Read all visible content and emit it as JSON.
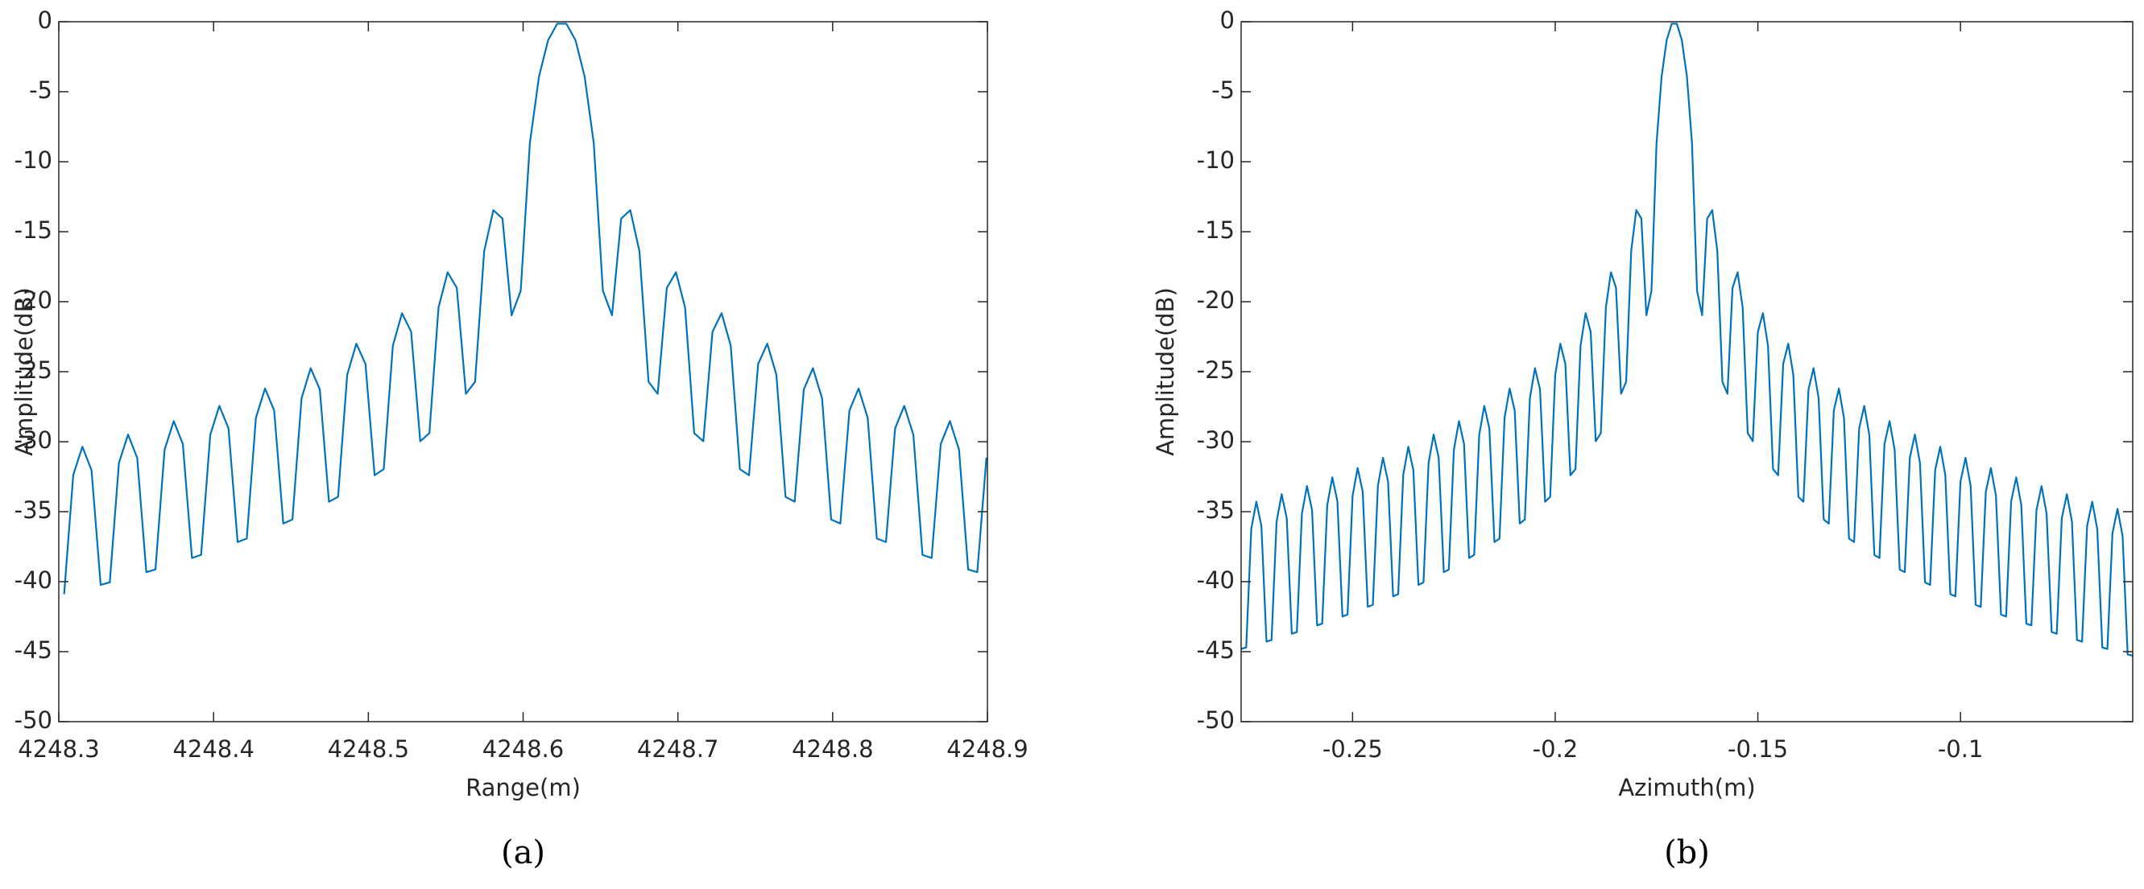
{
  "chart_data": [
    {
      "type": "line",
      "x_label": "Range(m)",
      "y_label": "Amplitude(dB)",
      "caption": "(a)",
      "xlim": [
        4248.3,
        4248.9
      ],
      "xticks": [
        4248.3,
        4248.4,
        4248.5,
        4248.6,
        4248.7,
        4248.8,
        4248.9
      ],
      "ylim": [
        -50,
        0
      ],
      "yticks": [
        0,
        -5,
        -10,
        -15,
        -20,
        -25,
        -30,
        -35,
        -40,
        -45,
        -50
      ],
      "color": "#0072bd",
      "x": [
        4248.30345,
        4248.30935,
        4248.31525,
        4248.32115,
        4248.32705,
        4248.33295,
        4248.33885,
        4248.34475,
        4248.35065,
        4248.35655,
        4248.36245,
        4248.36835,
        4248.37425,
        4248.38015,
        4248.38605,
        4248.39195,
        4248.39785,
        4248.40375,
        4248.40965,
        4248.41555,
        4248.42145,
        4248.42735,
        4248.43325,
        4248.43915,
        4248.44505,
        4248.45095,
        4248.45685,
        4248.46275,
        4248.46865,
        4248.47455,
        4248.48045,
        4248.48635,
        4248.49225,
        4248.49815,
        4248.50405,
        4248.50995,
        4248.51585,
        4248.52175,
        4248.52765,
        4248.53355,
        4248.53945,
        4248.54535,
        4248.55125,
        4248.55715,
        4248.56305,
        4248.56895,
        4248.57485,
        4248.58075,
        4248.58665,
        4248.59255,
        4248.59845,
        4248.60435,
        4248.61025,
        4248.61615,
        4248.62205,
        4248.62795,
        4248.63385,
        4248.63975,
        4248.64565,
        4248.65155,
        4248.65745,
        4248.66335,
        4248.66925,
        4248.67515,
        4248.68105,
        4248.68695,
        4248.69285,
        4248.69875,
        4248.70465,
        4248.71055,
        4248.71645,
        4248.72235,
        4248.72825,
        4248.73415,
        4248.74005,
        4248.74595,
        4248.75185,
        4248.75775,
        4248.76365,
        4248.76955,
        4248.77545,
        4248.78135,
        4248.78725,
        4248.79315,
        4248.79905,
        4248.80495,
        4248.81085,
        4248.81675,
        4248.82265,
        4248.82855,
        4248.83445,
        4248.84035,
        4248.84625,
        4248.85215,
        4248.85805,
        4248.86395,
        4248.86985,
        4248.87575,
        4248.88165,
        4248.88755,
        4248.89345,
        4248.89935
      ],
      "values": [
        -40.89,
        -32.37,
        -30.36,
        -32.04,
        -40.23,
        -40.05,
        -31.52,
        -29.49,
        -31.15,
        -39.32,
        -39.13,
        -30.57,
        -28.53,
        -30.16,
        -38.31,
        -38.09,
        -29.51,
        -27.44,
        -29.05,
        -37.17,
        -36.92,
        -28.3,
        -26.2,
        -27.77,
        -35.85,
        -35.56,
        -26.9,
        -24.75,
        -26.27,
        -34.29,
        -33.94,
        -25.22,
        -23.0,
        -24.45,
        -32.4,
        -31.96,
        -23.14,
        -20.82,
        -22.15,
        -29.97,
        -29.39,
        -20.41,
        -17.9,
        -19.01,
        -26.58,
        -25.72,
        -16.39,
        -13.46,
        -14.06,
        -20.97,
        -19.22,
        -8.68,
        -3.92,
        -1.32,
        -0.14,
        -0.14,
        -1.32,
        -3.92,
        -8.68,
        -19.22,
        -20.97,
        -14.06,
        -13.46,
        -16.39,
        -25.72,
        -26.58,
        -19.01,
        -17.9,
        -20.41,
        -29.39,
        -29.97,
        -22.15,
        -20.82,
        -23.14,
        -31.96,
        -32.4,
        -24.45,
        -23.0,
        -25.22,
        -33.94,
        -34.29,
        -26.27,
        -24.75,
        -26.9,
        -35.56,
        -35.85,
        -27.77,
        -26.2,
        -28.3,
        -36.92,
        -37.17,
        -29.05,
        -27.44,
        -29.51,
        -38.09,
        -38.31,
        -30.16,
        -28.53,
        -30.57,
        -39.13,
        -39.32,
        -31.15
      ]
    },
    {
      "type": "line",
      "x_label": "Azimuth(m)",
      "y_label": "Amplitude(dB)",
      "caption": "(b)",
      "xlim": [
        -0.2775,
        -0.0575
      ],
      "xticks": [
        -0.25,
        -0.2,
        -0.15,
        -0.1
      ],
      "ylim": [
        -50,
        0
      ],
      "yticks": [
        0,
        -5,
        -10,
        -15,
        -20,
        -25,
        -30,
        -35,
        -40,
        -45,
        -50
      ],
      "color": "#0072bd",
      "x": [
        -0.2775,
        -0.27625,
        -0.275,
        -0.27375,
        -0.2725,
        -0.27125,
        -0.27,
        -0.26875,
        -0.2675,
        -0.26625,
        -0.265,
        -0.26375,
        -0.2625,
        -0.26125,
        -0.26,
        -0.25875,
        -0.2575,
        -0.25625,
        -0.255,
        -0.25375,
        -0.2525,
        -0.25125,
        -0.25,
        -0.24875,
        -0.2475,
        -0.24625,
        -0.245,
        -0.24375,
        -0.2425,
        -0.24125,
        -0.24,
        -0.23875,
        -0.2375,
        -0.23625,
        -0.235,
        -0.23375,
        -0.2325,
        -0.23125,
        -0.23,
        -0.22875,
        -0.2275,
        -0.22625,
        -0.225,
        -0.22375,
        -0.2225,
        -0.22125,
        -0.22,
        -0.21875,
        -0.2175,
        -0.21625,
        -0.215,
        -0.21375,
        -0.2125,
        -0.21125,
        -0.21,
        -0.20875,
        -0.2075,
        -0.20625,
        -0.205,
        -0.20375,
        -0.2025,
        -0.20125,
        -0.2,
        -0.19875,
        -0.1975,
        -0.19625,
        -0.195,
        -0.19375,
        -0.1925,
        -0.19125,
        -0.19,
        -0.18875,
        -0.1875,
        -0.18625,
        -0.185,
        -0.18375,
        -0.1825,
        -0.18125,
        -0.18,
        -0.17875,
        -0.1775,
        -0.17625,
        -0.175,
        -0.17375,
        -0.1725,
        -0.17125,
        -0.17,
        -0.16875,
        -0.1675,
        -0.16625,
        -0.165,
        -0.16375,
        -0.1625,
        -0.16125,
        -0.16,
        -0.15875,
        -0.1575,
        -0.15625,
        -0.155,
        -0.15375,
        -0.1525,
        -0.15125,
        -0.15,
        -0.14875,
        -0.1475,
        -0.14625,
        -0.145,
        -0.14375,
        -0.1425,
        -0.14125,
        -0.14,
        -0.13875,
        -0.1375,
        -0.13625,
        -0.135,
        -0.13375,
        -0.1325,
        -0.13125,
        -0.13,
        -0.12875,
        -0.1275,
        -0.12625,
        -0.125,
        -0.12375,
        -0.1225,
        -0.12125,
        -0.12,
        -0.11875,
        -0.1175,
        -0.11625,
        -0.115,
        -0.11375,
        -0.1125,
        -0.11125,
        -0.11,
        -0.10875,
        -0.1075,
        -0.10625,
        -0.105,
        -0.10375,
        -0.1025,
        -0.10125,
        -0.1,
        -0.09875,
        -0.0975,
        -0.09625,
        -0.095,
        -0.09375,
        -0.0925,
        -0.09125,
        -0.09,
        -0.08875,
        -0.0875,
        -0.08625,
        -0.085,
        -0.08375,
        -0.0825,
        -0.08125,
        -0.08,
        -0.07875,
        -0.0775,
        -0.07625,
        -0.075,
        -0.07375,
        -0.0725,
        -0.07125,
        -0.07,
        -0.06875,
        -0.0675,
        -0.06625,
        -0.065,
        -0.06375,
        -0.0625,
        -0.06125,
        -0.06,
        -0.05875,
        -0.0575
      ],
      "values": [
        -44.8,
        -44.7,
        -36.23,
        -34.29,
        -36.02,
        -44.28,
        -44.17,
        -35.7,
        -33.75,
        -35.47,
        -43.72,
        -43.6,
        -35.13,
        -33.17,
        -34.89,
        -43.12,
        -43.0,
        -34.51,
        -32.55,
        -34.26,
        -42.49,
        -42.35,
        -33.86,
        -31.88,
        -33.58,
        -41.8,
        -41.65,
        -33.14,
        -31.15,
        -32.84,
        -41.05,
        -40.89,
        -32.37,
        -30.36,
        -32.04,
        -40.23,
        -40.05,
        -31.52,
        -29.49,
        -31.15,
        -39.32,
        -39.13,
        -30.57,
        -28.53,
        -30.16,
        -38.31,
        -38.09,
        -29.51,
        -27.44,
        -29.05,
        -37.17,
        -36.92,
        -28.3,
        -26.2,
        -27.77,
        -35.85,
        -35.56,
        -26.9,
        -24.75,
        -26.27,
        -34.29,
        -33.94,
        -25.22,
        -23.0,
        -24.45,
        -32.4,
        -31.96,
        -23.14,
        -20.82,
        -22.15,
        -29.97,
        -29.39,
        -20.41,
        -17.9,
        -19.01,
        -26.58,
        -25.72,
        -16.39,
        -13.46,
        -14.06,
        -20.97,
        -19.22,
        -8.68,
        -3.92,
        -1.32,
        -0.14,
        -0.14,
        -1.32,
        -3.92,
        -8.68,
        -19.22,
        -20.97,
        -14.06,
        -13.46,
        -16.39,
        -25.72,
        -26.58,
        -19.01,
        -17.9,
        -20.41,
        -29.39,
        -29.97,
        -22.15,
        -20.82,
        -23.14,
        -31.96,
        -32.4,
        -24.45,
        -23.0,
        -25.22,
        -33.94,
        -34.29,
        -26.27,
        -24.75,
        -26.9,
        -35.56,
        -35.85,
        -27.77,
        -26.2,
        -28.3,
        -36.92,
        -37.17,
        -29.05,
        -27.44,
        -29.51,
        -38.09,
        -38.31,
        -30.16,
        -28.53,
        -30.57,
        -39.13,
        -39.32,
        -31.15,
        -29.49,
        -31.52,
        -40.05,
        -40.23,
        -32.04,
        -30.36,
        -32.37,
        -40.89,
        -41.05,
        -32.84,
        -31.15,
        -33.14,
        -41.65,
        -41.8,
        -33.58,
        -31.88,
        -33.86,
        -42.35,
        -42.49,
        -34.26,
        -32.55,
        -34.51,
        -43.0,
        -43.12,
        -34.89,
        -33.17,
        -35.13,
        -43.6,
        -43.72,
        -35.47,
        -33.75,
        -35.7,
        -44.17,
        -44.28,
        -36.02,
        -34.29,
        -36.23,
        -44.7,
        -44.8,
        -36.54,
        -34.8,
        -36.74,
        -45.2,
        -45.29
      ]
    }
  ]
}
